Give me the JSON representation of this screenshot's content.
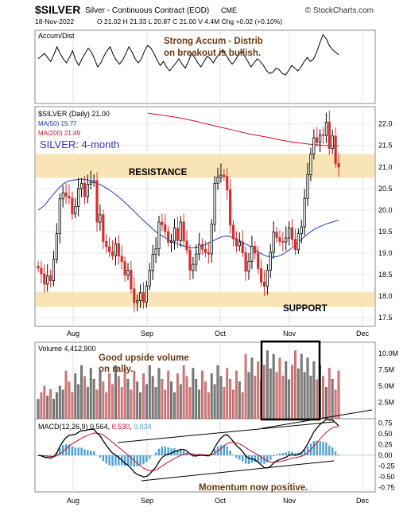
{
  "header": {
    "symbol": "$SILVER",
    "description": "Silver - Continuous Contract (EOD)",
    "exchange": "CME",
    "brand": "© StockCharts.com",
    "date": "18-Nov-2022",
    "quote": "O 21.02  H 21.33  L 20.87  C 21.00  V 4.4M  Chg +0.02 (+0.10%)"
  },
  "panels": {
    "accum": {
      "label": "Accum/Dist",
      "note_line1": "Strong Accum - Distrib",
      "note_line2": "on breakout is bullish."
    },
    "price": {
      "legend_symbol": "$SILVER (Daily) 21.00",
      "legend_ma50": "MA(50) 19.77",
      "legend_ma200": "MA(200) 21.49",
      "subtitle": "SILVER: 4-month",
      "resistance_label": "RESISTANCE",
      "support_label": "SUPPORT"
    },
    "volume": {
      "legend": "Volume 4,412,900",
      "note_line1": "Good upside volume",
      "note_line2": "on rally."
    },
    "macd": {
      "legend_prefix": "MACD(12,26,9)",
      "legend_macd": "0.564",
      "legend_signal": "0.530",
      "legend_hist": "0.034",
      "note": "Momentum now positive."
    }
  },
  "colors": {
    "up": "#000000",
    "down": "#d32f2f",
    "ma50": "#1f3ca8",
    "ma200": "#c8102e",
    "zone": "#f8e4b4",
    "vol_up": "#7f7f7f",
    "vol_down": "#d9777a",
    "hist": "#4aa0d0",
    "annotation": "#6b3a10",
    "subtitle": "#3a3ab0"
  },
  "chart_data": {
    "type": "candlestick",
    "x_tick_labels": [
      "Aug",
      "Sep",
      "Oct",
      "Nov",
      "Dec"
    ],
    "price": {
      "ylim": [
        17.3,
        22.4
      ],
      "y_ticks": [
        17.5,
        18.0,
        18.5,
        19.0,
        19.5,
        20.0,
        20.5,
        21.0,
        21.5,
        22.0
      ],
      "resistance_zone": [
        20.75,
        21.3
      ],
      "support_zone": [
        17.75,
        18.1
      ],
      "close": [
        18.65,
        18.52,
        18.28,
        18.47,
        18.36,
        18.86,
        19.45,
        20.26,
        20.4,
        20.32,
        20.28,
        19.91,
        20.08,
        20.5,
        20.62,
        20.31,
        20.6,
        20.64,
        20.68,
        19.72,
        19.89,
        19.27,
        19.15,
        19.03,
        18.94,
        19.22,
        18.93,
        18.8,
        18.49,
        18.6,
        18.17,
        17.85,
        17.9,
        18.08,
        17.86,
        18.24,
        18.6,
        18.97,
        19.1,
        19.72,
        19.66,
        19.5,
        19.25,
        19.28,
        19.58,
        19.29,
        19.72,
        19.28,
        19.07,
        18.6,
        18.74,
        18.98,
        19.2,
        19.09,
        19.01,
        18.98,
        19.67,
        20.62,
        20.76,
        20.81,
        20.78,
        20.47,
        19.65,
        19.33,
        19.17,
        19.26,
        19.01,
        18.58,
        18.81,
        19.16,
        19.0,
        18.64,
        18.33,
        18.23,
        18.6,
        19.02,
        19.49,
        19.36,
        19.27,
        19.26,
        19.35,
        19.59,
        19.32,
        19.08,
        19.45,
        19.61,
        20.27,
        20.82,
        21.3,
        21.68,
        21.57,
        21.75,
        21.73,
        22.04,
        21.43,
        21.72,
        21.08,
        21.0
      ],
      "ma50": [
        20.0,
        20.1,
        20.28,
        20.45,
        20.6,
        20.68,
        20.7,
        20.72,
        20.7,
        20.66,
        20.6,
        20.52,
        20.43,
        20.32,
        20.2,
        20.06,
        19.92,
        19.78,
        19.65,
        19.52,
        19.42,
        19.33,
        19.26,
        19.2,
        19.15,
        19.12,
        19.14,
        19.18,
        19.25,
        19.32,
        19.38,
        19.4,
        19.35,
        19.28,
        19.2,
        19.12,
        19.02,
        18.94,
        18.9,
        18.92,
        18.98,
        19.08,
        19.2,
        19.33,
        19.45,
        19.55,
        19.62,
        19.68,
        19.72,
        19.77
      ],
      "ma200": [
        22.25,
        22.2,
        22.15,
        22.08,
        22.0,
        21.92,
        21.84,
        21.76,
        21.7,
        21.63,
        21.57,
        21.53,
        21.5,
        21.49
      ]
    },
    "volume": {
      "ylim": [
        0,
        11
      ],
      "y_ticks": [
        2.5,
        5.0,
        7.5,
        10.0
      ],
      "unit": "M"
    },
    "macd": {
      "ylim": [
        -0.85,
        0.85
      ],
      "y_ticks": [
        0.75,
        0.5,
        0.25,
        0.0,
        -0.25,
        -0.5,
        -0.75
      ]
    },
    "accum_dist": {
      "values": [
        62,
        66,
        70,
        64,
        58,
        68,
        80,
        70,
        62,
        56,
        64,
        74,
        60,
        52,
        62,
        70,
        78,
        72,
        62,
        50,
        56,
        66,
        74,
        80,
        68,
        60,
        54,
        60,
        70,
        80,
        72,
        62,
        56,
        62,
        74,
        82,
        78,
        70,
        60,
        52,
        58,
        50,
        44,
        50,
        56,
        62,
        54,
        48,
        58,
        70,
        64,
        56,
        50,
        58,
        66,
        62,
        56,
        64,
        70,
        76,
        68,
        60,
        54,
        60,
        68,
        74,
        66,
        58,
        50,
        56,
        62,
        58,
        52,
        44,
        40,
        42,
        48,
        46,
        40,
        38,
        44,
        52,
        48,
        44,
        50,
        58,
        64,
        58,
        62,
        72,
        86,
        98,
        92,
        82,
        76,
        72,
        68
      ]
    }
  }
}
